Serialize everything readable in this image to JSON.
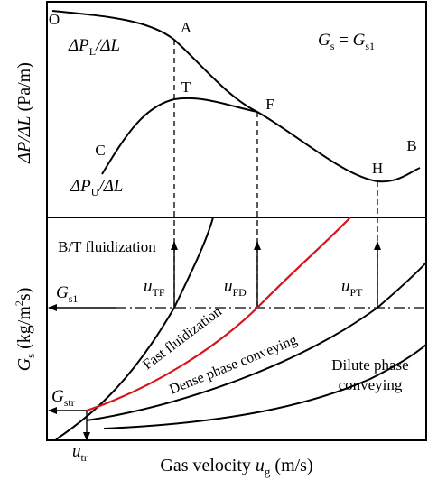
{
  "colors": {
    "ink": "#000000",
    "fast_fluidization_curve": "#d8141b",
    "background": "#ffffff"
  },
  "top_panel": {
    "ylabel": {
      "base": "ΔP/ΔL",
      "unit": "(Pa/m)"
    },
    "condition": {
      "lhs": "G",
      "lhs_sub": "s",
      "eq": "=",
      "rhs": "G",
      "rhs_sub": "s1"
    },
    "curve_labels": {
      "lower": {
        "base": "ΔP",
        "sub": "L",
        "tail": "/ΔL"
      },
      "upper": {
        "base": "ΔP",
        "sub": "U",
        "tail": "/ΔL"
      }
    },
    "points": {
      "O": "O",
      "A": "A",
      "T": "T",
      "F": "F",
      "C": "C",
      "H": "H",
      "B": "B"
    }
  },
  "bottom_panel": {
    "ylabel": {
      "base": "G",
      "sub": "s",
      "unit_pre": "(kg/m",
      "unit_sup": "2",
      "unit_post": "s)"
    },
    "xlabel": {
      "pre": "Gas velocity ",
      "var": "u",
      "sub": "g",
      "unit": "(m/s)"
    },
    "regions": {
      "bt": "B/T fluidization",
      "fast": "Fast fluidization",
      "dense": "Dense phase conveying",
      "dilute_line1": "Dilute phase",
      "dilute_line2": "conveying"
    },
    "velocity_labels": {
      "utf": {
        "base": "u",
        "sub": "TF"
      },
      "ufd": {
        "base": "u",
        "sub": "FD"
      },
      "upt": {
        "base": "u",
        "sub": "PT"
      },
      "utr": {
        "base": "u",
        "sub": "tr"
      }
    },
    "flux_labels": {
      "gs1": {
        "base": "G",
        "sub": "s1"
      },
      "gstr": {
        "base": "G",
        "sub": "str"
      }
    }
  }
}
